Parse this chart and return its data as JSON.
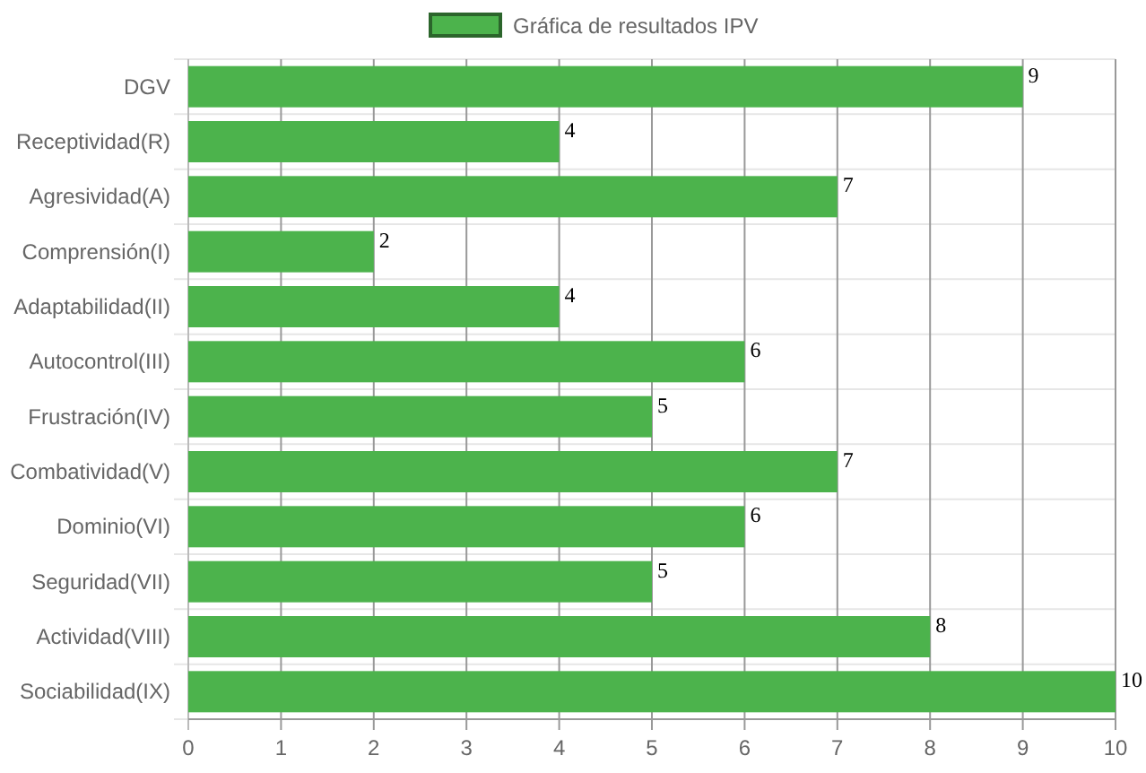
{
  "chart_data": {
    "type": "bar",
    "orientation": "horizontal",
    "categories": [
      "DGV",
      "Receptividad(R)",
      "Agresividad(A)",
      "Comprensión(I)",
      "Adaptabilidad(II)",
      "Autocontrol(III)",
      "Frustración(IV)",
      "Combatividad(V)",
      "Dominio(VI)",
      "Seguridad(VII)",
      "Actividad(VIII)",
      "Sociabilidad(IX)"
    ],
    "series": [
      {
        "name": "Gráfica de resultados IPV",
        "color": "#4cb34c",
        "values": [
          9,
          4,
          7,
          2,
          4,
          6,
          5,
          7,
          6,
          5,
          8,
          10
        ]
      }
    ],
    "xlim": [
      0,
      10
    ],
    "xticks": [
      0,
      1,
      2,
      3,
      4,
      5,
      6,
      7,
      8,
      9,
      10
    ],
    "grid": true,
    "legend": "top",
    "data_labels": true
  }
}
